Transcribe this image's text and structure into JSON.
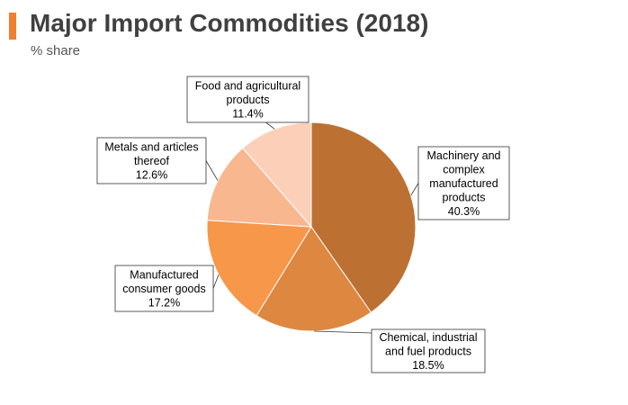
{
  "header": {
    "title": "Major Import Commodities (2018)",
    "subtitle": "% share",
    "accent_color": "#F08030"
  },
  "chart_data": {
    "type": "pie",
    "title": "Major Import Commodities (2018)",
    "subtitle": "% share",
    "slices": [
      {
        "label": [
          "Machinery and",
          "complex",
          "manufactured",
          "products"
        ],
        "value": 40.3,
        "value_label": "40.3%",
        "color": "#BC7133"
      },
      {
        "label": [
          "Chemical, industrial",
          "and fuel products"
        ],
        "value": 18.5,
        "value_label": "18.5%",
        "color": "#DE8740"
      },
      {
        "label": [
          "Manufactured",
          "consumer goods"
        ],
        "value": 17.2,
        "value_label": "17.2%",
        "color": "#F7974A"
      },
      {
        "label": [
          "Metals and articles",
          "thereof"
        ],
        "value": 12.6,
        "value_label": "12.6%",
        "color": "#F9B78F"
      },
      {
        "label": [
          "Food and agricultural",
          "products"
        ],
        "value": 11.4,
        "value_label": "11.4%",
        "color": "#FCCFB8"
      }
    ],
    "start_angle_deg": 0,
    "direction": "clockwise",
    "legend": "none"
  }
}
